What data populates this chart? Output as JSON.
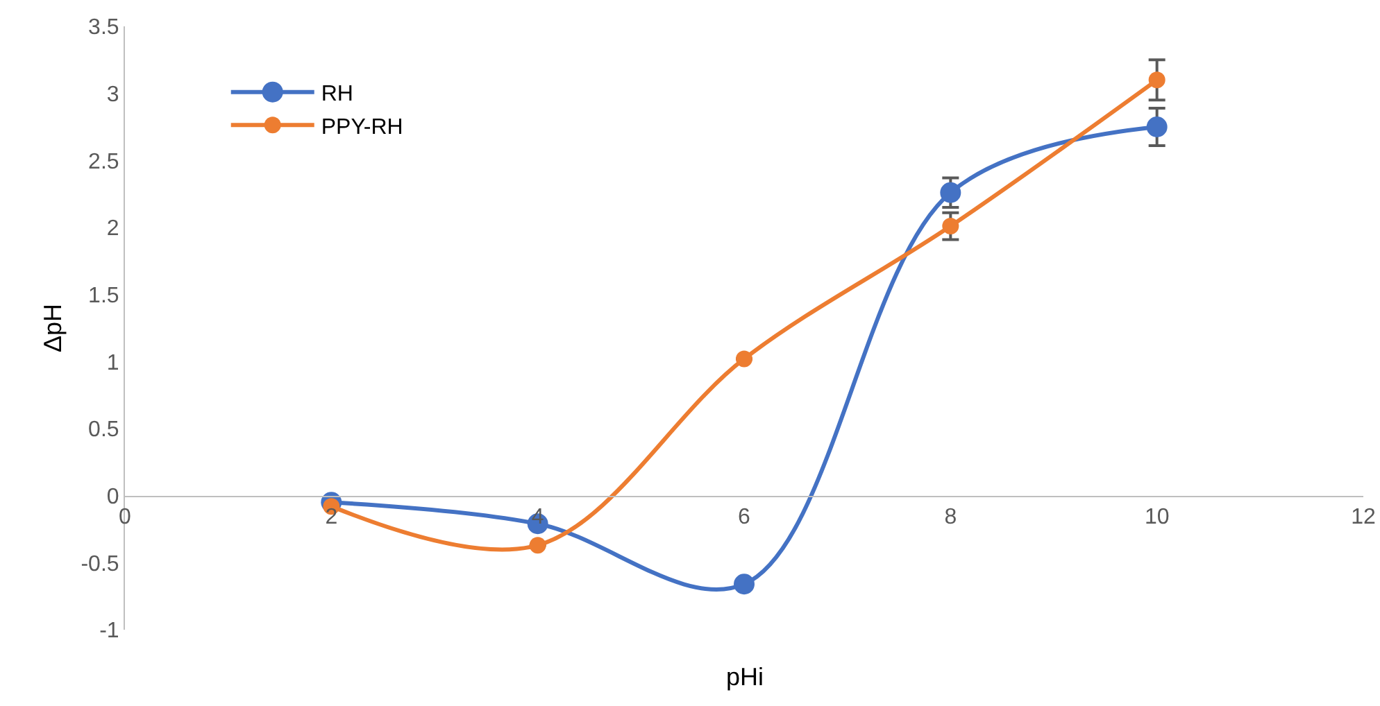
{
  "chart_data": {
    "type": "line",
    "xlabel": "pHi",
    "ylabel": "ΔpH",
    "x": [
      2,
      4,
      6,
      8,
      10
    ],
    "series": [
      {
        "name": "RH",
        "color": "#4472c4",
        "values": [
          -0.05,
          -0.21,
          -0.66,
          2.26,
          2.75
        ],
        "errors": [
          null,
          null,
          null,
          0.11,
          0.14
        ]
      },
      {
        "name": "PPY-RH",
        "color": "#ed7d31",
        "values": [
          -0.08,
          -0.37,
          1.02,
          2.01,
          3.1
        ],
        "errors": [
          null,
          null,
          null,
          0.1,
          0.15
        ]
      }
    ],
    "xlim": [
      0,
      12
    ],
    "xticks": [
      0,
      2,
      4,
      6,
      8,
      10,
      12
    ],
    "ylim": [
      -1,
      3.5
    ],
    "yticks": [
      -1,
      -0.5,
      0,
      0.5,
      1,
      1.5,
      2,
      2.5,
      3,
      3.5
    ],
    "grid": false,
    "legend": "top left",
    "marker": "circle",
    "line_style": "solid"
  }
}
